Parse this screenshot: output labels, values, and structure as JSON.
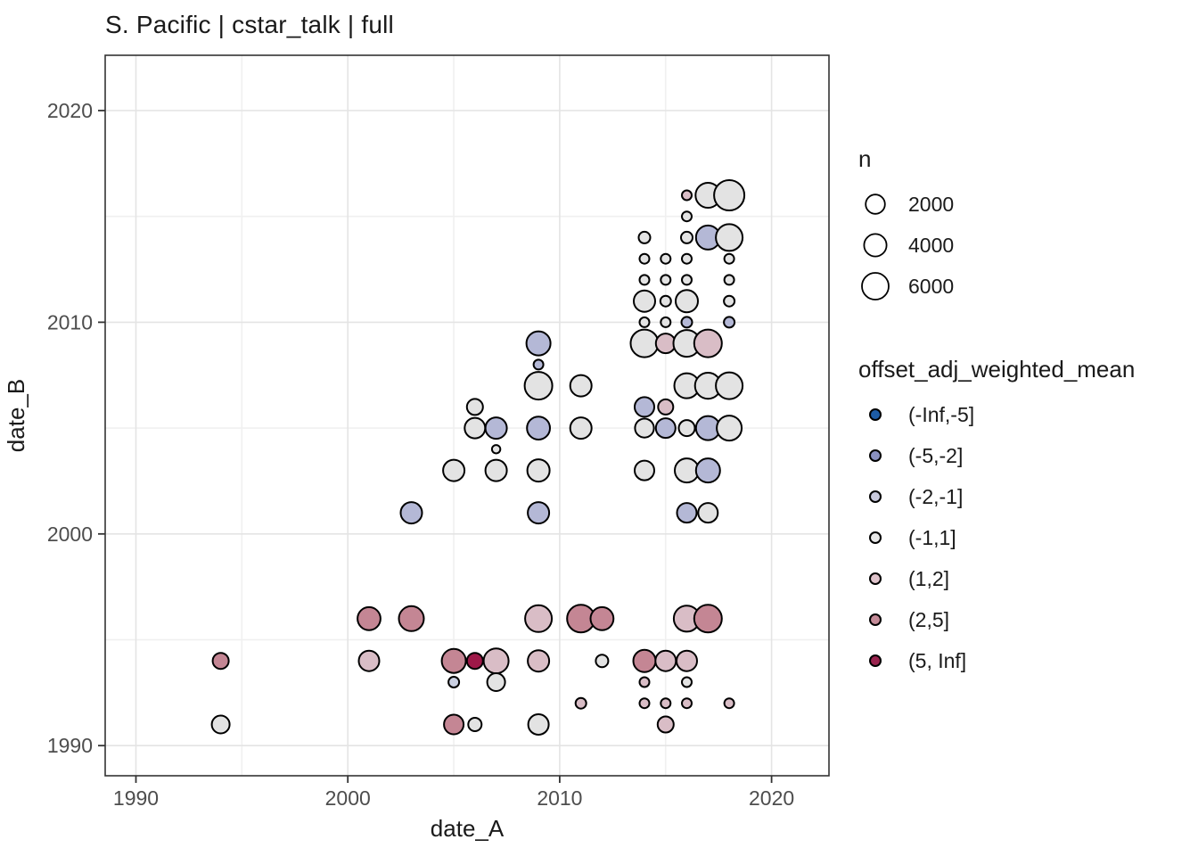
{
  "title": "S. Pacific | cstar_talk | full",
  "colors": {
    "background": "#ffffff",
    "panel_border": "#333333",
    "grid_major": "#e4e4e4",
    "grid_minor": "#f0f0f0",
    "tick": "#333333",
    "axis_text": "#4d4d4d",
    "text": "#1a1a1a",
    "point_stroke": "#000000"
  },
  "legend_size": {
    "title": "n",
    "items": [
      {
        "label": "2000",
        "r": 10.8
      },
      {
        "label": "4000",
        "r": 12.6
      },
      {
        "label": "6000",
        "r": 15.0
      }
    ]
  },
  "legend_color": {
    "title": "offset_adj_weighted_mean",
    "items": [
      {
        "label": "(-Inf,-5]",
        "color": "#1d5ca6",
        "fill": "#1d5ca6"
      },
      {
        "label": "(-5,-2]",
        "color": "#8a90c0",
        "fill": "#b4b8d6"
      },
      {
        "label": "(-2,-1]",
        "color": "#c8c9dc",
        "fill": "#cad0e2"
      },
      {
        "label": "(-1,1]",
        "color": "#e9e9e9",
        "fill": "#e3e3e3"
      },
      {
        "label": "(1,2]",
        "color": "#dfc3cb",
        "fill": "#d9bdc6"
      },
      {
        "label": "(2,5]",
        "color": "#c48b98",
        "fill": "#c48694"
      },
      {
        "label": "(5, Inf]",
        "color": "#99234e",
        "fill": "#9e1848"
      }
    ]
  },
  "chart_data": {
    "type": "scatter",
    "title": "S. Pacific | cstar_talk | full",
    "xlabel": "date_A",
    "ylabel": "date_B",
    "xlim": [
      1988.5,
      2022.7
    ],
    "ylim": [
      1988.5,
      2022.7
    ],
    "x_ticks": [
      1990,
      2000,
      2010,
      2020
    ],
    "y_ticks": [
      1990,
      2000,
      2010,
      2020
    ],
    "x_minor_ticks": [
      1995,
      2005,
      2015
    ],
    "y_minor_ticks": [
      1995,
      2005,
      2015
    ],
    "grid": true,
    "size_legend_values": [
      2000,
      4000,
      6000
    ],
    "color_bins": [
      "(-Inf,-5]",
      "(-5,-2]",
      "(-2,-1]",
      "(-1,1]",
      "(1,2]",
      "(2,5]",
      "(5, Inf]"
    ],
    "points": [
      {
        "x": 1994,
        "y": 1994,
        "n": 1000,
        "bin": "(2,5]"
      },
      {
        "x": 1994,
        "y": 1991,
        "n": 1400,
        "bin": "(-1,1]"
      },
      {
        "x": 2001,
        "y": 1996,
        "n": 3100,
        "bin": "(2,5]"
      },
      {
        "x": 2001,
        "y": 1994,
        "n": 2200,
        "bin": "(1,2]"
      },
      {
        "x": 2003,
        "y": 2001,
        "n": 2500,
        "bin": "(-5,-2]"
      },
      {
        "x": 2003,
        "y": 1996,
        "n": 3900,
        "bin": "(2,5]"
      },
      {
        "x": 2005,
        "y": 2003,
        "n": 2500,
        "bin": "(-1,1]"
      },
      {
        "x": 2005,
        "y": 1994,
        "n": 3500,
        "bin": "(2,5]"
      },
      {
        "x": 2005,
        "y": 1993,
        "n": 170,
        "bin": "(-2,-1]"
      },
      {
        "x": 2005,
        "y": 1991,
        "n": 1900,
        "bin": "(2,5]"
      },
      {
        "x": 2006,
        "y": 2006,
        "n": 1000,
        "bin": "(-1,1]"
      },
      {
        "x": 2006,
        "y": 2005,
        "n": 2200,
        "bin": "(-1,1]"
      },
      {
        "x": 2006,
        "y": 1994,
        "n": 1000,
        "bin": "(5, Inf]"
      },
      {
        "x": 2006,
        "y": 1991,
        "n": 500,
        "bin": "(-1,1]"
      },
      {
        "x": 2007,
        "y": 2005,
        "n": 2500,
        "bin": "(-5,-2]"
      },
      {
        "x": 2007,
        "y": 2004,
        "n": 30,
        "bin": "(-1,1]"
      },
      {
        "x": 2007,
        "y": 2003,
        "n": 2500,
        "bin": "(-1,1]"
      },
      {
        "x": 2007,
        "y": 1994,
        "n": 3900,
        "bin": "(1,2]"
      },
      {
        "x": 2007,
        "y": 1993,
        "n": 1400,
        "bin": "(-1,1]"
      },
      {
        "x": 2009,
        "y": 2009,
        "n": 3500,
        "bin": "(-5,-2]"
      },
      {
        "x": 2009,
        "y": 2008,
        "n": 100,
        "bin": "(-5,-2]"
      },
      {
        "x": 2009,
        "y": 2007,
        "n": 5100,
        "bin": "(-1,1]"
      },
      {
        "x": 2009,
        "y": 2005,
        "n": 3100,
        "bin": "(-5,-2]"
      },
      {
        "x": 2009,
        "y": 2003,
        "n": 2800,
        "bin": "(-1,1]"
      },
      {
        "x": 2009,
        "y": 2001,
        "n": 2500,
        "bin": "(-5,-2]"
      },
      {
        "x": 2009,
        "y": 1996,
        "n": 4700,
        "bin": "(1,2]"
      },
      {
        "x": 2009,
        "y": 1994,
        "n": 2500,
        "bin": "(1,2]"
      },
      {
        "x": 2009,
        "y": 1991,
        "n": 2200,
        "bin": "(-1,1]"
      },
      {
        "x": 2011,
        "y": 2007,
        "n": 2500,
        "bin": "(-1,1]"
      },
      {
        "x": 2011,
        "y": 2005,
        "n": 2500,
        "bin": "(-1,1]"
      },
      {
        "x": 2011,
        "y": 1996,
        "n": 5100,
        "bin": "(2,5]"
      },
      {
        "x": 2011,
        "y": 1992,
        "n": 170,
        "bin": "(1,2]"
      },
      {
        "x": 2012,
        "y": 1996,
        "n": 3100,
        "bin": "(2,5]"
      },
      {
        "x": 2012,
        "y": 1994,
        "n": 370,
        "bin": "(-1,1]"
      },
      {
        "x": 2014,
        "y": 2014,
        "n": 270,
        "bin": "(-1,1]"
      },
      {
        "x": 2014,
        "y": 2013,
        "n": 100,
        "bin": "(-1,1]"
      },
      {
        "x": 2014,
        "y": 2012,
        "n": 100,
        "bin": "(-1,1]"
      },
      {
        "x": 2014,
        "y": 2011,
        "n": 2500,
        "bin": "(-1,1]"
      },
      {
        "x": 2014,
        "y": 2010,
        "n": 100,
        "bin": "(-1,1]"
      },
      {
        "x": 2014,
        "y": 2009,
        "n": 5100,
        "bin": "(-1,1]"
      },
      {
        "x": 2014,
        "y": 2006,
        "n": 1900,
        "bin": "(-5,-2]"
      },
      {
        "x": 2014,
        "y": 2005,
        "n": 1700,
        "bin": "(-1,1]"
      },
      {
        "x": 2014,
        "y": 2003,
        "n": 1900,
        "bin": "(-1,1]"
      },
      {
        "x": 2014,
        "y": 1994,
        "n": 2800,
        "bin": "(2,5]"
      },
      {
        "x": 2014,
        "y": 1993,
        "n": 100,
        "bin": "(1,2]"
      },
      {
        "x": 2014,
        "y": 1992,
        "n": 100,
        "bin": "(1,2]"
      },
      {
        "x": 2015,
        "y": 2013,
        "n": 100,
        "bin": "(-1,1]"
      },
      {
        "x": 2015,
        "y": 2012,
        "n": 100,
        "bin": "(-1,1]"
      },
      {
        "x": 2015,
        "y": 2011,
        "n": 170,
        "bin": "(-1,1]"
      },
      {
        "x": 2015,
        "y": 2010,
        "n": 100,
        "bin": "(-1,1]"
      },
      {
        "x": 2015,
        "y": 2009,
        "n": 1900,
        "bin": "(1,2]"
      },
      {
        "x": 2015,
        "y": 2006,
        "n": 800,
        "bin": "(1,2]"
      },
      {
        "x": 2015,
        "y": 2005,
        "n": 1900,
        "bin": "(-5,-2]"
      },
      {
        "x": 2015,
        "y": 1994,
        "n": 2200,
        "bin": "(1,2]"
      },
      {
        "x": 2015,
        "y": 1992,
        "n": 100,
        "bin": "(1,2]"
      },
      {
        "x": 2015,
        "y": 1991,
        "n": 1000,
        "bin": "(1,2]"
      },
      {
        "x": 2016,
        "y": 2016,
        "n": 100,
        "bin": "(1,2]"
      },
      {
        "x": 2016,
        "y": 2015,
        "n": 100,
        "bin": "(-1,1]"
      },
      {
        "x": 2016,
        "y": 2014,
        "n": 270,
        "bin": "(-1,1]"
      },
      {
        "x": 2016,
        "y": 2013,
        "n": 100,
        "bin": "(-1,1]"
      },
      {
        "x": 2016,
        "y": 2012,
        "n": 100,
        "bin": "(-1,1]"
      },
      {
        "x": 2016,
        "y": 2011,
        "n": 2800,
        "bin": "(-1,1]"
      },
      {
        "x": 2016,
        "y": 2010,
        "n": 170,
        "bin": "(-5,-2]"
      },
      {
        "x": 2016,
        "y": 2009,
        "n": 4700,
        "bin": "(-1,1]"
      },
      {
        "x": 2016,
        "y": 2007,
        "n": 3900,
        "bin": "(-1,1]"
      },
      {
        "x": 2016,
        "y": 2005,
        "n": 1000,
        "bin": "(-1,1]"
      },
      {
        "x": 2016,
        "y": 2003,
        "n": 3500,
        "bin": "(-1,1]"
      },
      {
        "x": 2016,
        "y": 2001,
        "n": 1900,
        "bin": "(-5,-2]"
      },
      {
        "x": 2016,
        "y": 1996,
        "n": 4300,
        "bin": "(1,2]"
      },
      {
        "x": 2016,
        "y": 1994,
        "n": 2200,
        "bin": "(1,2]"
      },
      {
        "x": 2016,
        "y": 1993,
        "n": 100,
        "bin": "(-1,1]"
      },
      {
        "x": 2016,
        "y": 1992,
        "n": 100,
        "bin": "(1,2]"
      },
      {
        "x": 2017,
        "y": 2016,
        "n": 3900,
        "bin": "(-1,1]"
      },
      {
        "x": 2017,
        "y": 2014,
        "n": 3500,
        "bin": "(-5,-2]"
      },
      {
        "x": 2017,
        "y": 2009,
        "n": 5100,
        "bin": "(1,2]"
      },
      {
        "x": 2017,
        "y": 2007,
        "n": 4300,
        "bin": "(-1,1]"
      },
      {
        "x": 2017,
        "y": 2005,
        "n": 3500,
        "bin": "(-5,-2]"
      },
      {
        "x": 2017,
        "y": 2003,
        "n": 3500,
        "bin": "(-5,-2]"
      },
      {
        "x": 2017,
        "y": 2001,
        "n": 1900,
        "bin": "(-1,1]"
      },
      {
        "x": 2017,
        "y": 1996,
        "n": 5100,
        "bin": "(2,5]"
      },
      {
        "x": 2018,
        "y": 2016,
        "n": 6500,
        "bin": "(-1,1]"
      },
      {
        "x": 2018,
        "y": 2014,
        "n": 4700,
        "bin": "(-1,1]"
      },
      {
        "x": 2018,
        "y": 2013,
        "n": 100,
        "bin": "(-1,1]"
      },
      {
        "x": 2018,
        "y": 2012,
        "n": 100,
        "bin": "(-1,1]"
      },
      {
        "x": 2018,
        "y": 2011,
        "n": 170,
        "bin": "(-1,1]"
      },
      {
        "x": 2018,
        "y": 2010,
        "n": 170,
        "bin": "(-5,-2]"
      },
      {
        "x": 2018,
        "y": 2007,
        "n": 4700,
        "bin": "(-1,1]"
      },
      {
        "x": 2018,
        "y": 2005,
        "n": 3900,
        "bin": "(-1,1]"
      },
      {
        "x": 2018,
        "y": 1992,
        "n": 100,
        "bin": "(1,2]"
      }
    ]
  }
}
